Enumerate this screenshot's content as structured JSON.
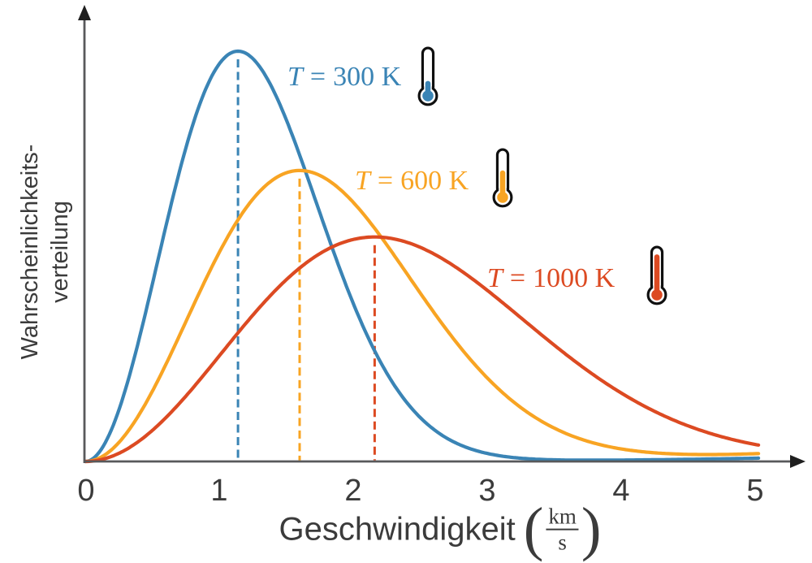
{
  "figure": {
    "background": "#ffffff",
    "axis_color": "#58595b",
    "arrow_color": "#1f1f1f",
    "text_color": "#3b3b3b"
  },
  "chart_data": {
    "type": "line",
    "title": "",
    "xlabel": "Geschwindigkeit (km/s)",
    "xlabel_text": "Geschwindigkeit",
    "unit": {
      "open_paren": "(",
      "numerator": "km",
      "denominator": "s",
      "close_paren": ")"
    },
    "ylabel": "Wahrscheinlichkeitsverteilung",
    "ylabel_lines": [
      "Wahrscheinlichkeits-",
      "verteilung"
    ],
    "x_ticks": [
      0,
      1,
      2,
      3,
      4,
      5
    ],
    "x_tick_labels": [
      "0",
      "1",
      "2",
      "3",
      "4",
      "5"
    ],
    "xlim": [
      0,
      5.35
    ],
    "ylim_note": "y axis unlabeled (relative probability density)",
    "grid": false,
    "legend_position": "inline-annotations",
    "curve_model": "Maxwell-Boltzmann speed distribution: f(v) ∝ v²·exp(−v²/v_p²)",
    "peak_marker_style": "dashed vertical line at most probable speed v_p",
    "series": [
      {
        "name": "T = 300 K",
        "temperature_K": 300,
        "color": "#3a84b5",
        "label_var": "T",
        "label_eq": "=",
        "label_val": "300 K",
        "v_peak_km_s": 1.14,
        "peak_height_rel": 1.0,
        "thermometer_fill": 0.22
      },
      {
        "name": "T = 600 K",
        "temperature_K": 600,
        "color": "#f8a423",
        "label_var": "T",
        "label_eq": "=",
        "label_val": "600 K",
        "v_peak_km_s": 1.6,
        "peak_height_rel": 0.709,
        "thermometer_fill": 0.55
      },
      {
        "name": "T = 1000 K",
        "temperature_K": 1000,
        "color": "#dc4a22",
        "label_var": "T",
        "label_eq": "=",
        "label_val": "1000 K",
        "v_peak_km_s": 2.16,
        "peak_height_rel": 0.547,
        "thermometer_fill": 0.92
      }
    ]
  }
}
